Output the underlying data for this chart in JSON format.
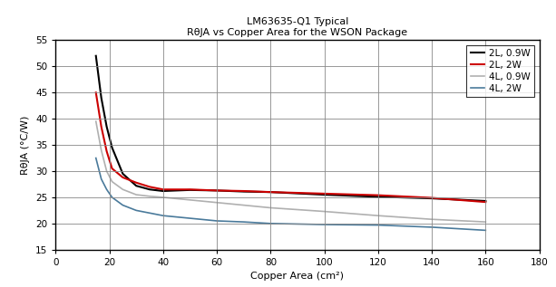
{
  "title_line1": "LM63635-Q1 Typical",
  "title_line2": "RθJA vs Copper Area for the WSON Package",
  "xlabel": "Copper Area (cm²)",
  "ylabel": "RθJA (°C/W)",
  "xlim": [
    0,
    180
  ],
  "ylim": [
    15,
    55
  ],
  "xticks": [
    0,
    20,
    40,
    60,
    80,
    100,
    120,
    140,
    160,
    180
  ],
  "yticks": [
    15,
    20,
    25,
    30,
    35,
    40,
    45,
    50,
    55
  ],
  "series": [
    {
      "label": "2L, 0.9W",
      "color": "#000000",
      "linewidth": 1.5,
      "x": [
        15,
        17,
        19,
        21,
        25,
        30,
        35,
        40,
        50,
        60,
        70,
        80,
        100,
        120,
        140,
        160
      ],
      "y": [
        52.0,
        44.0,
        38.5,
        34.5,
        29.5,
        27.2,
        26.5,
        26.2,
        26.4,
        26.3,
        26.1,
        26.0,
        25.5,
        25.1,
        24.8,
        24.3
      ]
    },
    {
      "label": "2L, 2W",
      "color": "#cc0000",
      "linewidth": 1.5,
      "x": [
        15,
        17,
        19,
        21,
        25,
        30,
        35,
        40,
        50,
        60,
        70,
        80,
        100,
        120,
        140,
        160
      ],
      "y": [
        45.0,
        38.5,
        33.8,
        30.5,
        28.8,
        27.8,
        27.0,
        26.5,
        26.5,
        26.3,
        26.2,
        26.0,
        25.7,
        25.4,
        24.9,
        24.1
      ]
    },
    {
      "label": "4L, 0.9W",
      "color": "#b0b0b0",
      "linewidth": 1.2,
      "x": [
        15,
        17,
        19,
        21,
        25,
        30,
        35,
        40,
        50,
        60,
        70,
        80,
        100,
        120,
        140,
        160
      ],
      "y": [
        39.5,
        34.0,
        30.0,
        28.0,
        26.5,
        25.5,
        25.2,
        25.0,
        24.5,
        24.0,
        23.5,
        23.0,
        22.3,
        21.5,
        20.8,
        20.3
      ]
    },
    {
      "label": "4L, 2W",
      "color": "#4a7a9b",
      "linewidth": 1.2,
      "x": [
        15,
        17,
        19,
        21,
        25,
        30,
        35,
        40,
        50,
        60,
        70,
        80,
        100,
        120,
        140,
        160
      ],
      "y": [
        32.5,
        28.5,
        26.5,
        25.0,
        23.5,
        22.5,
        22.0,
        21.5,
        21.0,
        20.5,
        20.3,
        20.0,
        19.8,
        19.7,
        19.3,
        18.7
      ]
    }
  ],
  "legend_loc": "upper right",
  "grid_color": "#888888",
  "background_color": "#ffffff",
  "title_fontsize": 8,
  "axis_fontsize": 8,
  "tick_fontsize": 7.5,
  "legend_fontsize": 7.5
}
